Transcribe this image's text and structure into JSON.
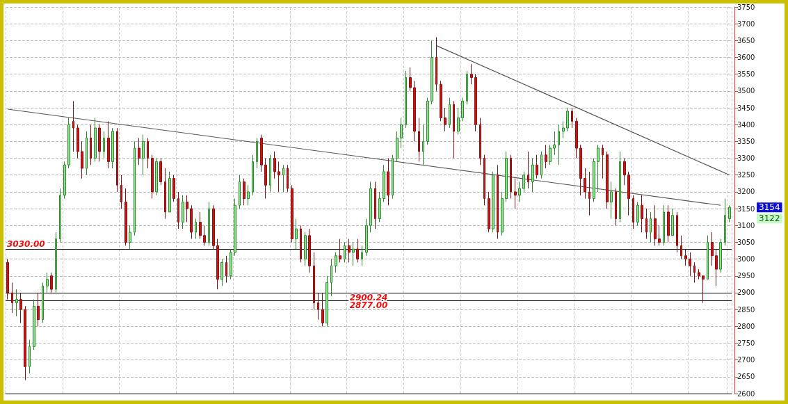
{
  "chart_data": {
    "type": "candlestick",
    "categories": [
      null,
      null,
      null,
      null,
      null,
      null,
      null,
      null,
      null,
      null,
      null,
      null,
      null,
      null,
      null,
      null,
      null,
      null,
      null,
      null,
      null,
      null,
      null,
      null,
      null,
      null,
      null,
      null,
      null,
      null,
      null,
      null,
      null,
      null,
      null,
      null,
      null,
      null,
      null,
      null,
      null,
      null,
      null,
      null,
      null,
      null,
      null,
      null,
      null,
      null,
      null,
      null,
      null,
      null,
      null,
      null,
      null,
      null,
      null,
      null,
      null,
      null,
      null,
      null,
      null,
      null,
      null,
      null,
      null,
      null,
      null,
      null,
      null,
      null,
      null,
      null,
      null,
      null,
      null,
      null,
      null,
      null,
      null,
      null,
      null,
      null,
      null,
      null,
      null,
      null,
      null,
      null,
      null,
      null,
      null,
      null,
      null,
      null,
      null,
      null,
      null,
      null,
      null,
      null,
      null,
      null,
      null,
      null,
      null,
      null,
      null,
      null,
      null,
      null,
      null,
      null,
      null,
      null,
      null,
      null,
      null,
      null,
      null,
      null,
      null,
      null,
      null,
      null,
      null,
      null,
      null,
      null,
      null,
      null,
      null,
      null,
      null,
      null,
      null,
      null,
      null,
      null,
      null,
      null,
      null,
      null,
      null,
      null,
      null,
      null,
      null,
      null,
      null,
      null,
      null,
      null,
      null,
      null,
      null,
      null,
      null,
      null,
      null,
      null,
      null,
      null
    ],
    "ohlc": [
      [
        2990,
        3000,
        2880,
        2900
      ],
      [
        2900,
        2930,
        2840,
        2870
      ],
      [
        2870,
        2910,
        2830,
        2880
      ],
      [
        2880,
        2900,
        2810,
        2850
      ],
      [
        2850,
        2860,
        2640,
        2680
      ],
      [
        2680,
        2760,
        2660,
        2740
      ],
      [
        2740,
        2880,
        2730,
        2860
      ],
      [
        2860,
        2900,
        2800,
        2820
      ],
      [
        2820,
        2930,
        2810,
        2920
      ],
      [
        2920,
        2960,
        2900,
        2940
      ],
      [
        2950,
        2960,
        2900,
        2910
      ],
      [
        2910,
        3080,
        2900,
        3060
      ],
      [
        3060,
        3210,
        3050,
        3190
      ],
      [
        3190,
        3290,
        3180,
        3280
      ],
      [
        3280,
        3420,
        3270,
        3400
      ],
      [
        3410,
        3470,
        3320,
        3390
      ],
      [
        3390,
        3400,
        3300,
        3320
      ],
      [
        3320,
        3350,
        3240,
        3270
      ],
      [
        3270,
        3380,
        3250,
        3360
      ],
      [
        3360,
        3400,
        3280,
        3300
      ],
      [
        3300,
        3420,
        3290,
        3390
      ],
      [
        3390,
        3400,
        3290,
        3320
      ],
      [
        3320,
        3380,
        3300,
        3360
      ],
      [
        3360,
        3410,
        3270,
        3290
      ],
      [
        3290,
        3390,
        3270,
        3380
      ],
      [
        3380,
        3390,
        3200,
        3220
      ],
      [
        3220,
        3250,
        3150,
        3170
      ],
      [
        3170,
        3210,
        3040,
        3050
      ],
      [
        3050,
        3100,
        3030,
        3080
      ],
      [
        3080,
        3350,
        3070,
        3330
      ],
      [
        3330,
        3360,
        3280,
        3300
      ],
      [
        3300,
        3370,
        3250,
        3350
      ],
      [
        3350,
        3360,
        3270,
        3300
      ],
      [
        3300,
        3310,
        3180,
        3200
      ],
      [
        3200,
        3300,
        3190,
        3290
      ],
      [
        3290,
        3300,
        3220,
        3230
      ],
      [
        3230,
        3270,
        3120,
        3140
      ],
      [
        3140,
        3260,
        3140,
        3240
      ],
      [
        3240,
        3250,
        3170,
        3180
      ],
      [
        3180,
        3200,
        3090,
        3110
      ],
      [
        3110,
        3190,
        3090,
        3170
      ],
      [
        3170,
        3190,
        3110,
        3150
      ],
      [
        3150,
        3160,
        3060,
        3080
      ],
      [
        3080,
        3120,
        3060,
        3110
      ],
      [
        3110,
        3140,
        3060,
        3070
      ],
      [
        3070,
        3100,
        3040,
        3050
      ],
      [
        3050,
        3170,
        3040,
        3150
      ],
      [
        3150,
        3160,
        3030,
        3040
      ],
      [
        3040,
        3060,
        2910,
        2940
      ],
      [
        2940,
        3000,
        2920,
        2990
      ],
      [
        2990,
        3010,
        2930,
        2950
      ],
      [
        2950,
        3030,
        2940,
        3020
      ],
      [
        3020,
        3180,
        3010,
        3160
      ],
      [
        3160,
        3250,
        3150,
        3230
      ],
      [
        3230,
        3240,
        3160,
        3180
      ],
      [
        3180,
        3220,
        3160,
        3200
      ],
      [
        3200,
        3310,
        3190,
        3290
      ],
      [
        3290,
        3360,
        3270,
        3350
      ],
      [
        3360,
        3370,
        3260,
        3280
      ],
      [
        3280,
        3300,
        3180,
        3220
      ],
      [
        3220,
        3310,
        3200,
        3300
      ],
      [
        3300,
        3320,
        3240,
        3260
      ],
      [
        3260,
        3290,
        3200,
        3250
      ],
      [
        3250,
        3280,
        3200,
        3270
      ],
      [
        3270,
        3280,
        3200,
        3210
      ],
      [
        3210,
        3220,
        3050,
        3060
      ],
      [
        3060,
        3120,
        3030,
        3090
      ],
      [
        3090,
        3100,
        2990,
        3000
      ],
      [
        3000,
        3080,
        2980,
        3070
      ],
      [
        3070,
        3090,
        2960,
        2980
      ],
      [
        2980,
        3020,
        2850,
        2870
      ],
      [
        2870,
        2900,
        2820,
        2850
      ],
      [
        2850,
        2900,
        2800,
        2810
      ],
      [
        2810,
        2950,
        2800,
        2930
      ],
      [
        2930,
        3000,
        2890,
        2980
      ],
      [
        2980,
        3020,
        2960,
        3010
      ],
      [
        3010,
        3060,
        2990,
        3000
      ],
      [
        3000,
        3050,
        2990,
        3040
      ],
      [
        3040,
        3060,
        2990,
        3020
      ],
      [
        3020,
        3050,
        2980,
        3030
      ],
      [
        3030,
        3060,
        2990,
        3000
      ],
      [
        3000,
        3040,
        2980,
        3020
      ],
      [
        3020,
        3120,
        3010,
        3100
      ],
      [
        3100,
        3230,
        3080,
        3210
      ],
      [
        3210,
        3230,
        3090,
        3120
      ],
      [
        3120,
        3200,
        3110,
        3180
      ],
      [
        3180,
        3280,
        3170,
        3260
      ],
      [
        3260,
        3300,
        3160,
        3190
      ],
      [
        3190,
        3310,
        3180,
        3300
      ],
      [
        3300,
        3380,
        3290,
        3360
      ],
      [
        3360,
        3420,
        3330,
        3400
      ],
      [
        3400,
        3560,
        3390,
        3540
      ],
      [
        3540,
        3570,
        3500,
        3510
      ],
      [
        3510,
        3530,
        3350,
        3380
      ],
      [
        3380,
        3420,
        3290,
        3320
      ],
      [
        3320,
        3400,
        3280,
        3350
      ],
      [
        3350,
        3480,
        3340,
        3470
      ],
      [
        3470,
        3650,
        3460,
        3600
      ],
      [
        3600,
        3660,
        3500,
        3520
      ],
      [
        3520,
        3530,
        3410,
        3420
      ],
      [
        3420,
        3450,
        3380,
        3400
      ],
      [
        3400,
        3480,
        3390,
        3460
      ],
      [
        3460,
        3470,
        3300,
        3380
      ],
      [
        3380,
        3450,
        3370,
        3420
      ],
      [
        3420,
        3480,
        3410,
        3470
      ],
      [
        3470,
        3560,
        3460,
        3550
      ],
      [
        3550,
        3580,
        3520,
        3540
      ],
      [
        3540,
        3550,
        3380,
        3400
      ],
      [
        3400,
        3420,
        3280,
        3300
      ],
      [
        3300,
        3310,
        3160,
        3180
      ],
      [
        3180,
        3200,
        3080,
        3090
      ],
      [
        3090,
        3260,
        3080,
        3250
      ],
      [
        3250,
        3280,
        3060,
        3080
      ],
      [
        3080,
        3200,
        3070,
        3180
      ],
      [
        3180,
        3320,
        3170,
        3300
      ],
      [
        3300,
        3310,
        3180,
        3200
      ],
      [
        3200,
        3240,
        3150,
        3190
      ],
      [
        3190,
        3230,
        3170,
        3210
      ],
      [
        3210,
        3260,
        3200,
        3250
      ],
      [
        3250,
        3320,
        3210,
        3230
      ],
      [
        3230,
        3300,
        3200,
        3280
      ],
      [
        3280,
        3310,
        3240,
        3250
      ],
      [
        3250,
        3320,
        3240,
        3310
      ],
      [
        3310,
        3340,
        3270,
        3290
      ],
      [
        3290,
        3340,
        3280,
        3330
      ],
      [
        3330,
        3380,
        3310,
        3340
      ],
      [
        3340,
        3400,
        3280,
        3380
      ],
      [
        3380,
        3410,
        3360,
        3390
      ],
      [
        3390,
        3450,
        3380,
        3440
      ],
      [
        3440,
        3450,
        3390,
        3410
      ],
      [
        3410,
        3420,
        3300,
        3330
      ],
      [
        3330,
        3340,
        3190,
        3240
      ],
      [
        3240,
        3270,
        3180,
        3200
      ],
      [
        3200,
        3260,
        3130,
        3180
      ],
      [
        3180,
        3300,
        3170,
        3290
      ],
      [
        3290,
        3340,
        3200,
        3330
      ],
      [
        3330,
        3340,
        3240,
        3310
      ],
      [
        3310,
        3320,
        3150,
        3170
      ],
      [
        3170,
        3230,
        3120,
        3200
      ],
      [
        3200,
        3210,
        3100,
        3120
      ],
      [
        3120,
        3320,
        3110,
        3290
      ],
      [
        3290,
        3300,
        3220,
        3250
      ],
      [
        3250,
        3260,
        3130,
        3180
      ],
      [
        3180,
        3190,
        3090,
        3110
      ],
      [
        3110,
        3170,
        3100,
        3160
      ],
      [
        3160,
        3190,
        3080,
        3120
      ],
      [
        3120,
        3150,
        3060,
        3080
      ],
      [
        3080,
        3140,
        3050,
        3120
      ],
      [
        3120,
        3160,
        3040,
        3060
      ],
      [
        3060,
        3100,
        3040,
        3050
      ],
      [
        3050,
        3160,
        3040,
        3140
      ],
      [
        3140,
        3160,
        3050,
        3070
      ],
      [
        3070,
        3150,
        3070,
        3130
      ],
      [
        3130,
        3140,
        3020,
        3040
      ],
      [
        3040,
        3070,
        3000,
        3010
      ],
      [
        3010,
        3030,
        2980,
        3000
      ],
      [
        3000,
        3020,
        2950,
        2980
      ],
      [
        2980,
        2990,
        2930,
        2960
      ],
      [
        2960,
        2970,
        2940,
        2950
      ],
      [
        2950,
        2950,
        2870,
        2940
      ],
      [
        2940,
        3070,
        2940,
        3050
      ],
      [
        3050,
        3080,
        2980,
        3010
      ],
      [
        3010,
        3030,
        2920,
        2970
      ],
      [
        2970,
        3060,
        2960,
        3050
      ],
      [
        3050,
        3180,
        3040,
        3130
      ],
      [
        3120,
        3160,
        3110,
        3154
      ]
    ],
    "series": [
      {
        "type": "line",
        "color": "#555555",
        "values": [
          3446,
          null,
          null,
          null,
          null,
          null,
          null,
          null,
          null,
          null,
          null,
          null,
          null,
          null,
          null,
          null,
          null,
          null,
          null,
          null,
          null,
          null,
          null,
          null,
          null,
          null,
          null,
          null,
          null,
          null,
          null,
          null,
          null,
          null,
          null,
          null,
          null,
          null,
          null,
          null,
          null,
          null,
          null,
          null,
          null,
          null,
          null,
          null,
          null,
          null,
          null,
          null,
          null,
          null,
          null,
          null,
          null,
          null,
          null,
          null,
          null,
          null,
          null,
          null,
          null,
          null,
          null,
          null,
          null,
          null,
          null,
          null,
          null,
          null,
          null,
          null,
          null,
          null,
          null,
          null,
          null,
          null,
          null,
          null,
          null,
          null,
          null,
          null,
          null,
          null,
          null,
          null,
          null,
          null,
          null,
          null,
          null,
          null,
          null,
          null,
          null,
          null,
          null,
          null,
          null,
          null,
          null,
          null,
          null,
          null,
          null,
          null,
          null,
          null,
          null,
          null,
          null,
          null,
          null,
          null,
          null,
          null,
          null,
          null,
          null,
          null,
          null,
          null,
          null,
          null,
          null,
          null,
          null,
          null,
          null,
          null,
          null,
          null,
          null,
          null,
          null,
          null,
          null,
          null,
          null,
          null,
          null,
          null,
          null,
          null,
          null,
          null,
          null,
          null,
          null,
          null,
          null,
          null,
          null,
          null,
          null,
          null,
          null,
          3160,
          null,
          null
        ]
      },
      {
        "type": "line",
        "color": "#555555",
        "values": [
          null,
          null,
          null,
          null,
          null,
          null,
          null,
          null,
          null,
          null,
          null,
          null,
          null,
          null,
          null,
          null,
          null,
          null,
          null,
          null,
          null,
          null,
          null,
          null,
          null,
          null,
          null,
          null,
          null,
          null,
          null,
          null,
          null,
          null,
          null,
          null,
          null,
          null,
          null,
          null,
          null,
          null,
          null,
          null,
          null,
          null,
          null,
          null,
          null,
          null,
          null,
          null,
          null,
          null,
          null,
          null,
          null,
          null,
          null,
          null,
          null,
          null,
          null,
          null,
          null,
          null,
          null,
          null,
          null,
          null,
          null,
          null,
          null,
          null,
          null,
          null,
          null,
          null,
          null,
          null,
          null,
          null,
          null,
          null,
          null,
          null,
          null,
          null,
          null,
          null,
          null,
          null,
          null,
          null,
          null,
          null,
          null,
          null,
          3635,
          null,
          null,
          null,
          null,
          null,
          null,
          null,
          null,
          null,
          null,
          null,
          null,
          null,
          null,
          null,
          null,
          null,
          null,
          null,
          null,
          null,
          null,
          null,
          null,
          null,
          null,
          null,
          null,
          null,
          null,
          null,
          null,
          null,
          null,
          null,
          null,
          null,
          null,
          null,
          null,
          null,
          null,
          null,
          null,
          null,
          null,
          null,
          null,
          null,
          null,
          null,
          null,
          null,
          null,
          null,
          null,
          null,
          null,
          null,
          null,
          null,
          null,
          null,
          null,
          null,
          null,
          3250
        ]
      }
    ],
    "ylim": [
      2600,
      3750
    ],
    "yticks": [
      2600,
      2650,
      2700,
      2750,
      2800,
      2850,
      2900,
      2950,
      3000,
      3050,
      3100,
      3150,
      3200,
      3250,
      3300,
      3350,
      3400,
      3450,
      3500,
      3550,
      3600,
      3650,
      3700,
      3750
    ],
    "ref_lines": [
      {
        "axis": "y",
        "value": 3030,
        "label": "3030.00",
        "color": "#000000"
      },
      {
        "axis": "y",
        "value": 2900.24,
        "label": "2900.24",
        "color": "#000000"
      },
      {
        "axis": "y",
        "value": 2877,
        "label": "2877.00",
        "color": "#000000"
      }
    ],
    "annotations": [
      "3154",
      "3122"
    ],
    "grid": true
  }
}
